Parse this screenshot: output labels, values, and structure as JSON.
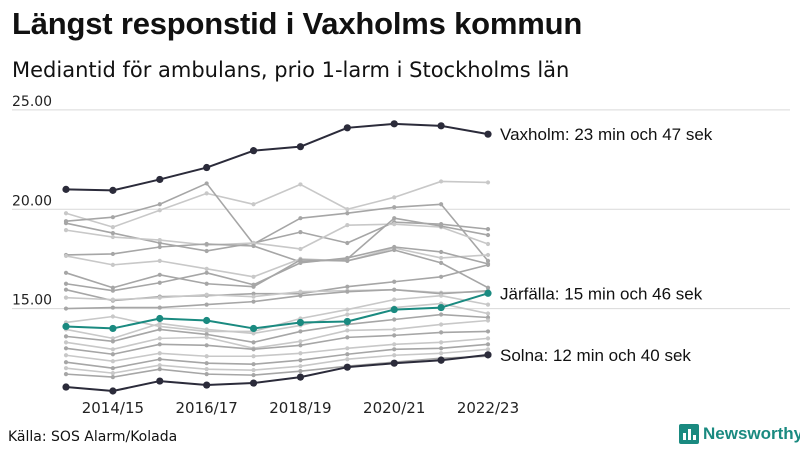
{
  "title": "Längst responstid i Vaxholms kommun",
  "subtitle": "Mediantid för ambulans, prio 1-larm i Stockholms län",
  "source": "Källa: SOS Alarm/Kolada",
  "brand": "Newsworthy",
  "chart_data": {
    "type": "line",
    "x": [
      "2013/14",
      "2014/15",
      "2015/16",
      "2016/17",
      "2017/18",
      "2018/19",
      "2019/20",
      "2020/21",
      "2021/22",
      "2022/23"
    ],
    "x_tick_labels": [
      "2014/15",
      "2016/17",
      "2018/19",
      "2020/21",
      "2022/23"
    ],
    "y_tick_labels": [
      "15.00",
      "20.00",
      "25.00"
    ],
    "ylim": [
      10.8,
      25.5
    ],
    "grid": true,
    "colors": {
      "highlight_dark": "#2b2b3a",
      "highlight_teal": "#1a8a80",
      "background_line": "#b8b8b8"
    },
    "highlighted": [
      {
        "name": "Vaxholm",
        "label": "Vaxholm: 23 min och 47 sek",
        "color": "#2b2b3a",
        "values": [
          21.0,
          20.95,
          21.5,
          22.1,
          22.95,
          23.15,
          24.1,
          24.3,
          24.2,
          23.78
        ]
      },
      {
        "name": "Järfälla",
        "label": "Järfälla: 15 min och 46 sek",
        "color": "#1a8a80",
        "values": [
          14.1,
          14.0,
          14.5,
          14.4,
          14.0,
          14.3,
          14.35,
          14.95,
          15.05,
          15.77
        ]
      },
      {
        "name": "Solna",
        "label": "Solna: 12 min och 40 sek",
        "color": "#2b2b3a",
        "values": [
          11.05,
          10.85,
          11.35,
          11.15,
          11.25,
          11.55,
          12.05,
          12.25,
          12.4,
          12.67
        ]
      }
    ],
    "background_series": [
      {
        "color": "#c8c8c8",
        "values": [
          19.8,
          19.1,
          19.95,
          20.8,
          20.25,
          21.25,
          20.0,
          20.6,
          21.4,
          21.35
        ]
      },
      {
        "color": "#a6a6a6",
        "values": [
          19.4,
          19.6,
          20.25,
          21.3,
          18.25,
          19.55,
          19.8,
          20.1,
          20.25,
          17.4
        ]
      },
      {
        "color": "#a6a6a6",
        "values": [
          19.3,
          18.8,
          18.3,
          17.9,
          18.3,
          18.85,
          18.3,
          19.35,
          19.25,
          19.0
        ]
      },
      {
        "color": "#c8c8c8",
        "values": [
          18.95,
          18.6,
          18.45,
          18.2,
          18.3,
          18.0,
          19.2,
          19.25,
          19.1,
          18.25
        ]
      },
      {
        "color": "#a6a6a6",
        "values": [
          17.7,
          17.75,
          18.1,
          18.25,
          18.15,
          17.35,
          17.5,
          19.55,
          19.15,
          18.7
        ]
      },
      {
        "color": "#c8c8c8",
        "values": [
          17.65,
          17.2,
          17.4,
          17.0,
          16.6,
          17.5,
          17.4,
          18.05,
          17.55,
          17.7
        ]
      },
      {
        "color": "#a6a6a6",
        "values": [
          16.8,
          16.05,
          16.7,
          16.25,
          16.1,
          17.45,
          17.4,
          17.95,
          17.3,
          16.05
        ]
      },
      {
        "color": "#a6a6a6",
        "values": [
          16.25,
          15.9,
          16.3,
          16.8,
          16.2,
          17.3,
          17.55,
          18.1,
          17.85,
          17.25
        ]
      },
      {
        "color": "#a6a6a6",
        "values": [
          15.95,
          15.4,
          15.6,
          15.65,
          15.75,
          15.75,
          16.1,
          16.35,
          16.6,
          17.2
        ]
      },
      {
        "color": "#c8c8c8",
        "values": [
          15.55,
          15.45,
          15.55,
          15.7,
          15.6,
          15.85,
          15.9,
          15.95,
          15.8,
          15.85
        ]
      },
      {
        "color": "#a6a6a6",
        "values": [
          15.0,
          15.05,
          15.05,
          15.2,
          15.35,
          15.65,
          15.85,
          15.95,
          15.75,
          15.9
        ]
      },
      {
        "color": "#c8c8c8",
        "values": [
          14.3,
          14.6,
          14.1,
          13.85,
          13.85,
          14.5,
          14.95,
          15.45,
          15.65,
          15.2
        ]
      },
      {
        "color": "#c8c8c8",
        "values": [
          13.95,
          13.5,
          14.25,
          13.95,
          13.75,
          14.15,
          14.7,
          15.05,
          15.25,
          14.75
        ]
      },
      {
        "color": "#a6a6a6",
        "values": [
          13.6,
          13.35,
          13.95,
          13.7,
          13.3,
          13.85,
          14.2,
          14.45,
          14.7,
          14.55
        ]
      },
      {
        "color": "#c8c8c8",
        "values": [
          13.3,
          12.95,
          13.5,
          13.55,
          13.0,
          13.35,
          13.9,
          13.95,
          14.2,
          14.4
        ]
      },
      {
        "color": "#a6a6a6",
        "values": [
          13.0,
          12.7,
          13.2,
          13.15,
          12.95,
          13.15,
          13.55,
          13.65,
          13.8,
          13.85
        ]
      },
      {
        "color": "#c8c8c8",
        "values": [
          12.65,
          12.35,
          12.75,
          12.6,
          12.6,
          12.75,
          13.0,
          13.2,
          13.3,
          13.5
        ]
      },
      {
        "color": "#a6a6a6",
        "values": [
          12.3,
          12.0,
          12.45,
          12.25,
          12.2,
          12.4,
          12.7,
          12.95,
          13.0,
          13.2
        ]
      },
      {
        "color": "#c8c8c8",
        "values": [
          12.0,
          11.75,
          12.15,
          11.95,
          11.9,
          12.1,
          12.45,
          12.65,
          12.75,
          12.95
        ]
      },
      {
        "color": "#a6a6a6",
        "values": [
          11.7,
          11.55,
          11.95,
          11.7,
          11.65,
          11.85,
          12.1,
          12.3,
          12.5,
          12.6
        ]
      }
    ]
  }
}
